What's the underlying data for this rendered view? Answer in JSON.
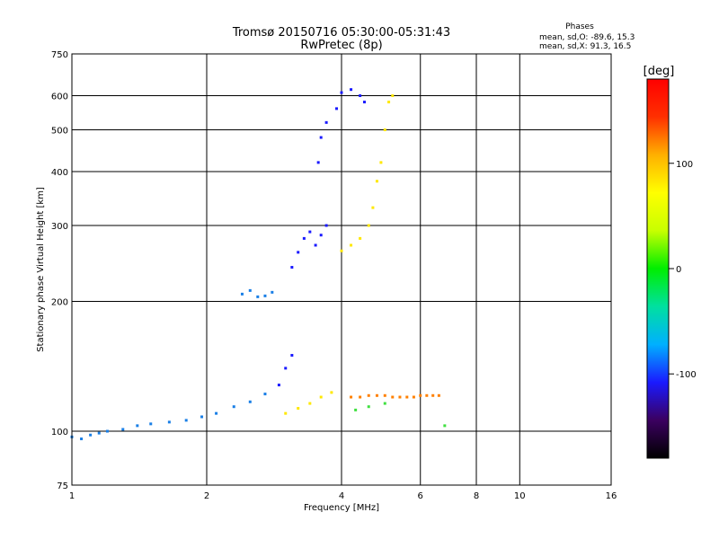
{
  "figure": {
    "title_line1": "Tromsø 20150716 05:30:00-05:31:43",
    "title_line2": "RwPretec (8p)",
    "info_title": "Phases",
    "info_line1": "mean, sd,O: -89.6, 15.3",
    "info_line2": "mean, sd,X:  91.3, 16.5"
  },
  "chart_data": {
    "type": "scatter",
    "xlabel": "Frequency [MHz]",
    "ylabel": "Stationary phase Virtual Height [km]",
    "x_scale": "log",
    "y_scale": "log",
    "xlim": [
      1,
      16
    ],
    "ylim": [
      75,
      750
    ],
    "x_ticks": [
      1,
      2,
      4,
      6,
      8,
      10,
      16
    ],
    "y_ticks": [
      75,
      100,
      200,
      300,
      400,
      500,
      600,
      750
    ],
    "grid": true,
    "colorbar": {
      "label": "[deg]",
      "range": [
        -180,
        180
      ],
      "ticks": [
        100,
        0,
        -100
      ],
      "colormap": [
        "#000000",
        "#3b0060",
        "#1a1aff",
        "#00b0ff",
        "#00e0a0",
        "#00ee00",
        "#c8ff00",
        "#ffff00",
        "#ffb000",
        "#ff3000",
        "#ff0000"
      ]
    },
    "series": [
      {
        "phase": -70,
        "color": "#1a7fe6",
        "points": [
          [
            1.0,
            97
          ],
          [
            1.05,
            96
          ],
          [
            1.1,
            98
          ],
          [
            1.15,
            99
          ],
          [
            1.2,
            100
          ],
          [
            1.3,
            101
          ],
          [
            1.4,
            103
          ],
          [
            1.5,
            104
          ],
          [
            1.65,
            105
          ],
          [
            1.8,
            106
          ],
          [
            1.95,
            108
          ],
          [
            2.1,
            110
          ],
          [
            2.3,
            114
          ],
          [
            2.5,
            117
          ],
          [
            2.7,
            122
          ],
          [
            2.4,
            208
          ],
          [
            2.5,
            212
          ],
          [
            2.6,
            205
          ],
          [
            2.7,
            206
          ],
          [
            2.8,
            210
          ]
        ]
      },
      {
        "phase": -100,
        "color": "#1a1aff",
        "points": [
          [
            2.9,
            128
          ],
          [
            3.0,
            140
          ],
          [
            3.1,
            150
          ],
          [
            3.1,
            240
          ],
          [
            3.2,
            260
          ],
          [
            3.3,
            280
          ],
          [
            3.4,
            290
          ],
          [
            3.5,
            270
          ],
          [
            3.6,
            285
          ],
          [
            3.7,
            300
          ],
          [
            3.55,
            420
          ],
          [
            3.6,
            480
          ],
          [
            3.7,
            520
          ],
          [
            3.9,
            560
          ],
          [
            4.0,
            610
          ],
          [
            4.2,
            620
          ],
          [
            4.4,
            600
          ],
          [
            4.5,
            580
          ]
        ]
      },
      {
        "phase": 100,
        "color": "#ffe800",
        "points": [
          [
            3.0,
            110
          ],
          [
            3.2,
            113
          ],
          [
            3.4,
            116
          ],
          [
            3.6,
            120
          ],
          [
            3.8,
            123
          ],
          [
            4.0,
            262
          ],
          [
            4.2,
            270
          ],
          [
            4.4,
            280
          ],
          [
            4.6,
            300
          ],
          [
            4.7,
            330
          ],
          [
            4.8,
            380
          ],
          [
            4.9,
            420
          ],
          [
            5.0,
            500
          ],
          [
            5.1,
            580
          ],
          [
            5.2,
            600
          ]
        ]
      },
      {
        "phase": 150,
        "color": "#ff8000",
        "points": [
          [
            4.2,
            120
          ],
          [
            4.4,
            120
          ],
          [
            4.6,
            121
          ],
          [
            4.8,
            121
          ],
          [
            5.0,
            121
          ],
          [
            5.2,
            120
          ],
          [
            5.4,
            120
          ],
          [
            5.6,
            120
          ],
          [
            5.8,
            120
          ],
          [
            6.0,
            121
          ],
          [
            6.2,
            121
          ],
          [
            6.4,
            121
          ],
          [
            6.6,
            121
          ]
        ]
      },
      {
        "phase": 10,
        "color": "#40e040",
        "points": [
          [
            4.3,
            112
          ],
          [
            4.6,
            114
          ],
          [
            5.0,
            116
          ],
          [
            6.8,
            103
          ]
        ]
      }
    ]
  }
}
